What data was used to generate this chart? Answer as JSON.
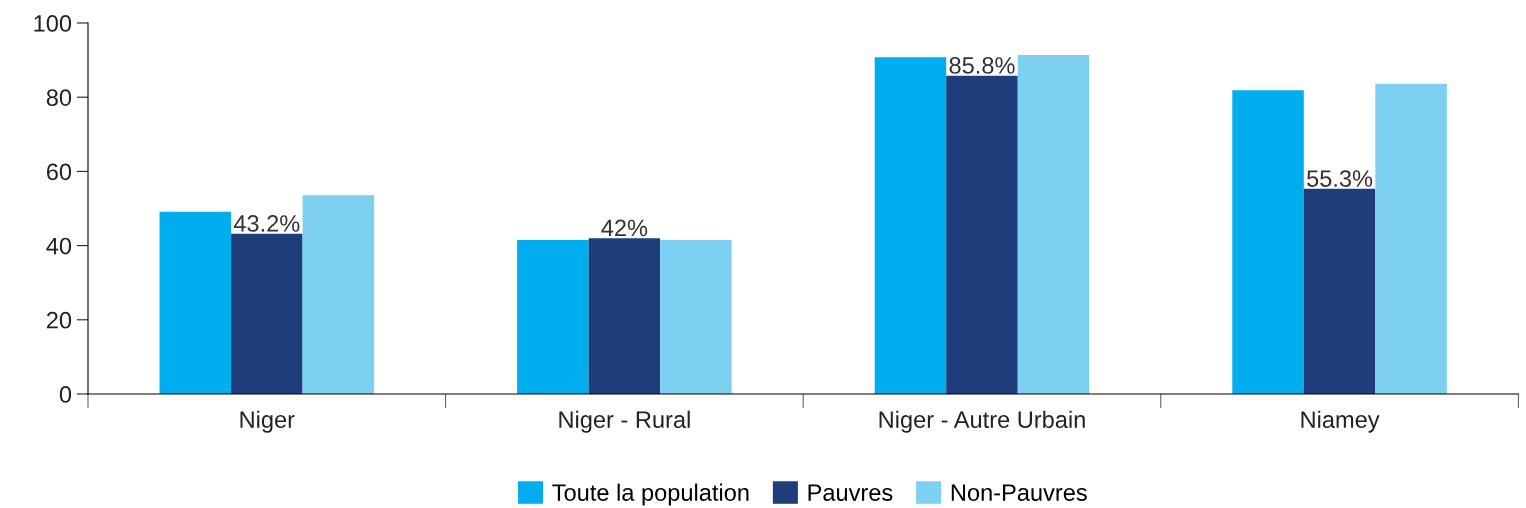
{
  "chart_data": {
    "type": "bar",
    "categories": [
      "Niger",
      "Niger - Rural",
      "Niger - Autre Urbain",
      "Niamey"
    ],
    "series": [
      {
        "name": "Toute la population",
        "color": "#00aeef",
        "values": [
          49.1,
          41.5,
          90.8,
          81.9
        ]
      },
      {
        "name": "Pauvres",
        "color": "#1f3d7a",
        "values": [
          43.2,
          42,
          85.8,
          55.3
        ],
        "value_labels": [
          "43.2%",
          "42%",
          "85.8%",
          "55.3%"
        ]
      },
      {
        "name": "Non-Pauvres",
        "color": "#7dd0f0",
        "values": [
          53.6,
          41.5,
          91.4,
          83.6
        ]
      }
    ],
    "ylim": [
      0,
      100
    ],
    "yticks": [
      0,
      20,
      40,
      60,
      80,
      100
    ],
    "grid": false,
    "legend": "bottom"
  }
}
